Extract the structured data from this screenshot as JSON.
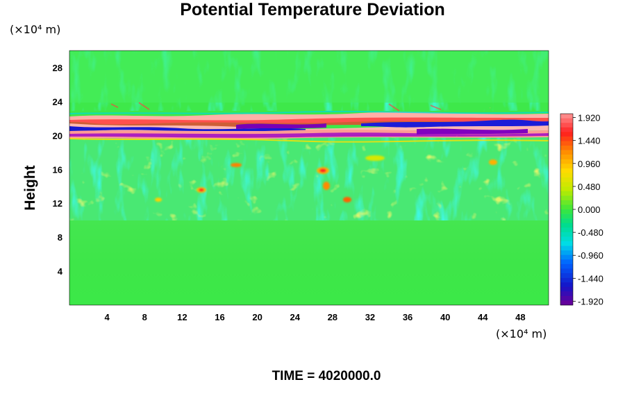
{
  "chart_data": {
    "type": "heatmap",
    "title": "Potential Temperature Deviation",
    "ylabel": "Height",
    "y_unit_label": "(×10⁴ m)",
    "x_unit_label": "(×10⁴ m)",
    "x_ticks": [
      4,
      8,
      12,
      16,
      20,
      24,
      28,
      32,
      36,
      40,
      44,
      48
    ],
    "y_ticks": [
      4,
      8,
      12,
      16,
      20,
      24,
      28
    ],
    "xlim": [
      0,
      51
    ],
    "ylim": [
      0,
      30
    ],
    "colorbar_ticks": [
      "1.920",
      "1.440",
      "0.960",
      "0.480",
      "0.000",
      "-0.480",
      "-0.960",
      "-1.440",
      "-1.920"
    ],
    "colorbar_range": [
      -2.0,
      2.0
    ],
    "time_label": "TIME = 4020000.0",
    "field_description_regions": [
      {
        "y_range": [
          0,
          10
        ],
        "value": 0.0
      },
      {
        "y_range": [
          10,
          18
        ],
        "value": -0.1
      },
      {
        "y_range": [
          19,
          23
        ],
        "value": 1.9
      }
    ]
  }
}
